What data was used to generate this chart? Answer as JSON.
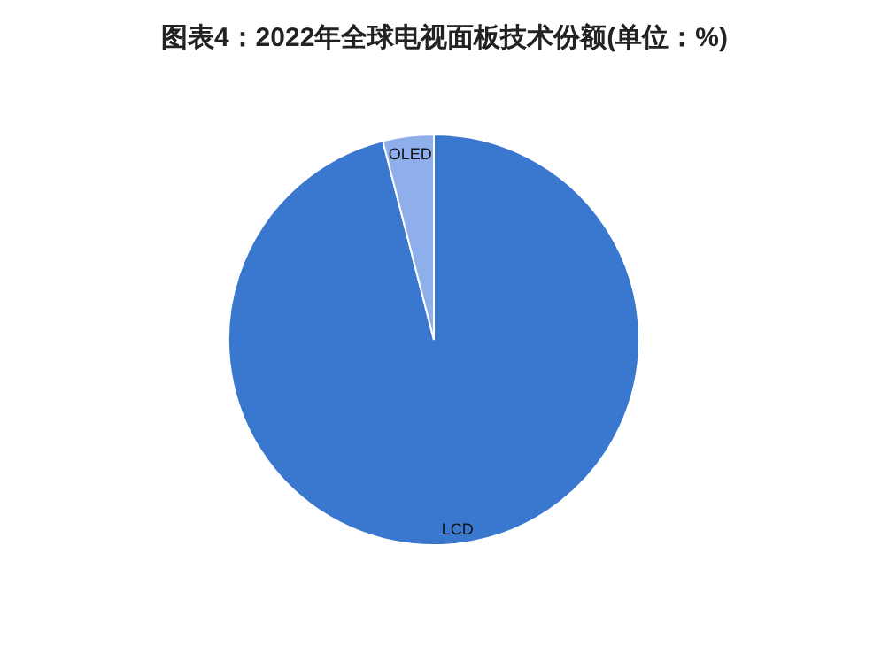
{
  "chart_data": {
    "type": "pie",
    "title": "图表4：2022年全球电视面板技术份额(单位：%)",
    "categories": [
      "LCD",
      "OLED"
    ],
    "values": [
      96,
      4
    ],
    "colors": [
      "#3a77cf",
      "#8eaeec"
    ]
  }
}
